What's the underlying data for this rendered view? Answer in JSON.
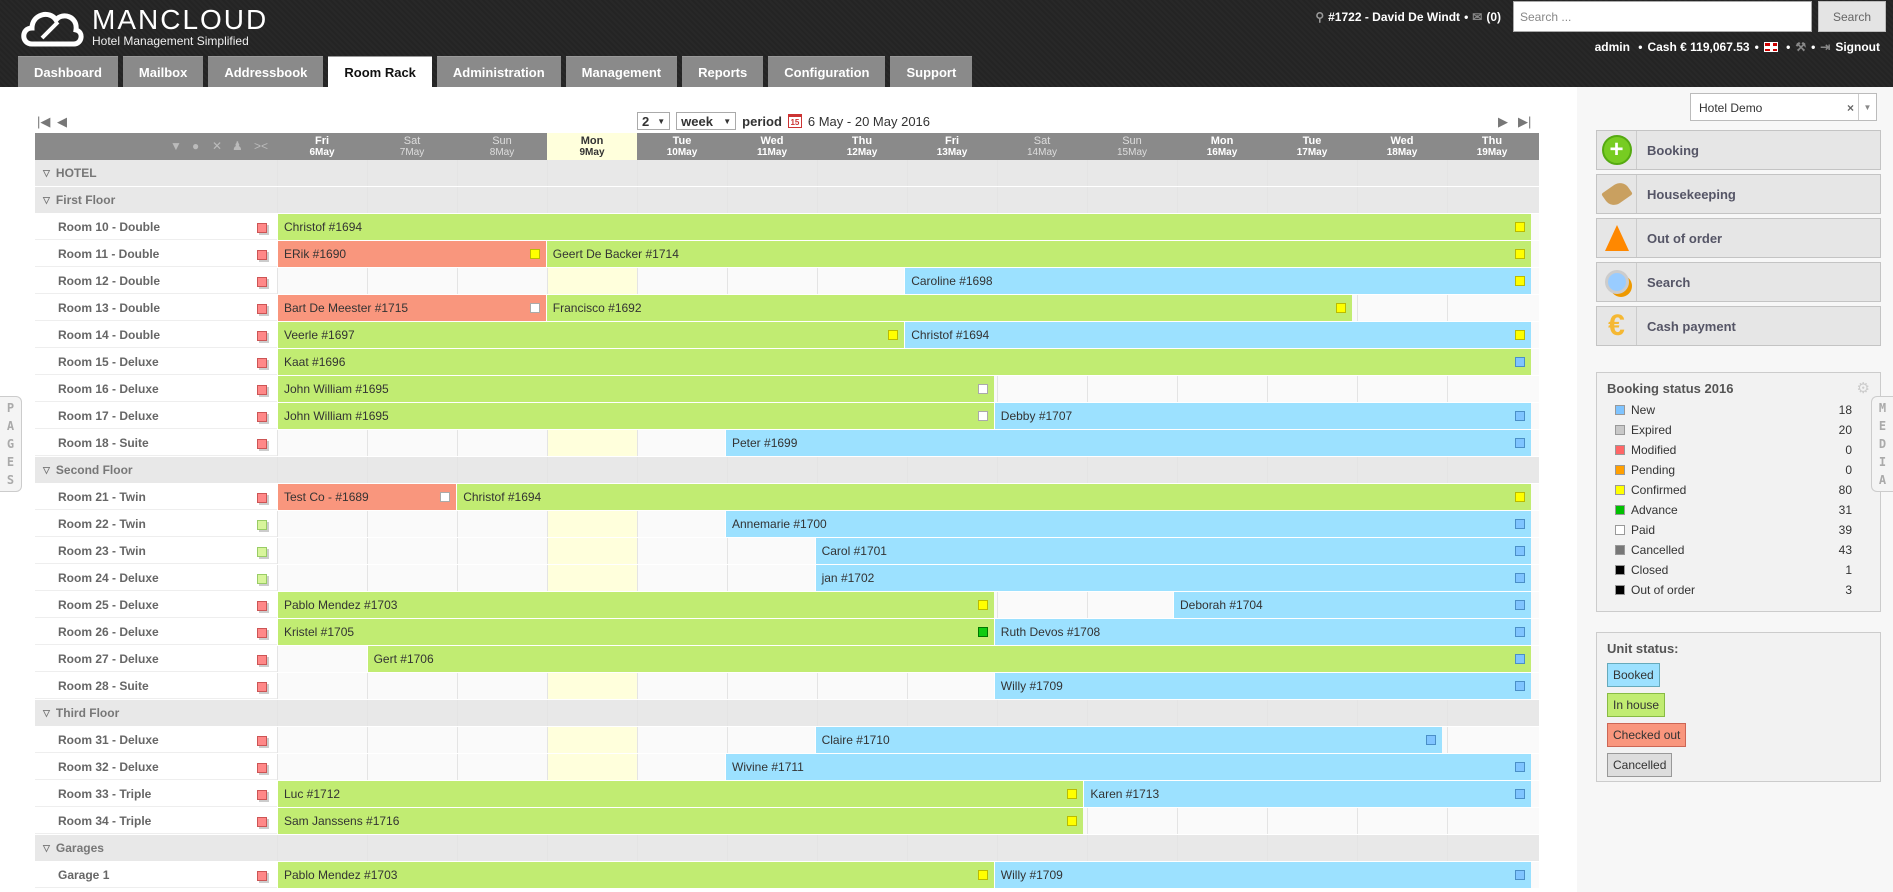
{
  "header": {
    "brand": "MANCLOUD",
    "tagline": "Hotel Management Simplified",
    "current_booking": "#1722 - David De Windt",
    "mail_count": "(0)",
    "search_placeholder": "Search ...",
    "search_button": "Search",
    "user": "admin",
    "cash": "Cash € 119,067.53",
    "signout": "Signout"
  },
  "tabs": [
    {
      "label": "Dashboard",
      "active": false
    },
    {
      "label": "Mailbox",
      "active": false
    },
    {
      "label": "Addressbook",
      "active": false
    },
    {
      "label": "Room Rack",
      "active": true
    },
    {
      "label": "Administration",
      "active": false
    },
    {
      "label": "Management",
      "active": false
    },
    {
      "label": "Reports",
      "active": false
    },
    {
      "label": "Configuration",
      "active": false
    },
    {
      "label": "Support",
      "active": false
    }
  ],
  "period": {
    "count": "2",
    "unit": "week",
    "label": "period",
    "range": "6 May - 20 May 2016"
  },
  "days": [
    {
      "dow": "Fri",
      "date": "6May",
      "weekend": false,
      "today": false
    },
    {
      "dow": "Sat",
      "date": "7May",
      "weekend": true,
      "today": false
    },
    {
      "dow": "Sun",
      "date": "8May",
      "weekend": true,
      "today": false
    },
    {
      "dow": "Mon",
      "date": "9May",
      "weekend": false,
      "today": true
    },
    {
      "dow": "Tue",
      "date": "10May",
      "weekend": false,
      "today": false
    },
    {
      "dow": "Wed",
      "date": "11May",
      "weekend": false,
      "today": false
    },
    {
      "dow": "Thu",
      "date": "12May",
      "weekend": false,
      "today": false
    },
    {
      "dow": "Fri",
      "date": "13May",
      "weekend": false,
      "today": false
    },
    {
      "dow": "Sat",
      "date": "14May",
      "weekend": true,
      "today": false
    },
    {
      "dow": "Sun",
      "date": "15May",
      "weekend": true,
      "today": false
    },
    {
      "dow": "Mon",
      "date": "16May",
      "weekend": false,
      "today": false
    },
    {
      "dow": "Tue",
      "date": "17May",
      "weekend": false,
      "today": false
    },
    {
      "dow": "Wed",
      "date": "18May",
      "weekend": false,
      "today": false
    },
    {
      "dow": "Thu",
      "date": "19May",
      "weekend": false,
      "today": false
    }
  ],
  "rows": [
    {
      "type": "group",
      "label": "HOTEL"
    },
    {
      "type": "group",
      "label": "First Floor"
    },
    {
      "type": "unit",
      "label": "Room 10 - Double",
      "unit_status": "red",
      "bookings": [
        {
          "name": "Christof #1694",
          "start": 0,
          "span": 14,
          "kind": "ih",
          "status": "yellow"
        }
      ]
    },
    {
      "type": "unit",
      "label": "Room 11 - Double",
      "unit_status": "red",
      "bookings": [
        {
          "name": "ERik #1690",
          "start": 0,
          "span": 3,
          "kind": "co",
          "status": "yellow"
        },
        {
          "name": "Geert De Backer #1714",
          "start": 3,
          "span": 11,
          "kind": "ih",
          "status": "yellow"
        }
      ]
    },
    {
      "type": "unit",
      "label": "Room 12 - Double",
      "unit_status": "red",
      "bookings": [
        {
          "name": "Caroline #1698",
          "start": 7,
          "span": 7,
          "kind": "bo",
          "status": "yellow"
        }
      ]
    },
    {
      "type": "unit",
      "label": "Room 13 - Double",
      "unit_status": "red",
      "bookings": [
        {
          "name": "Bart De Meester #1715",
          "start": 0,
          "span": 3,
          "kind": "co",
          "status": "white"
        },
        {
          "name": "Francisco #1692",
          "start": 3,
          "span": 9,
          "kind": "ih",
          "status": "yellow"
        }
      ]
    },
    {
      "type": "unit",
      "label": "Room 14 - Double",
      "unit_status": "red",
      "bookings": [
        {
          "name": "Veerle #1697",
          "start": 0,
          "span": 7,
          "kind": "ih",
          "status": "yellow"
        },
        {
          "name": "Christof #1694",
          "start": 7,
          "span": 7,
          "kind": "bo",
          "status": "yellow"
        }
      ]
    },
    {
      "type": "unit",
      "label": "Room 15 - Deluxe",
      "unit_status": "red",
      "bookings": [
        {
          "name": "Kaat #1696",
          "start": 0,
          "span": 14,
          "kind": "ih",
          "status": "blue"
        }
      ]
    },
    {
      "type": "unit",
      "label": "Room 16 - Deluxe",
      "unit_status": "red",
      "bookings": [
        {
          "name": "John William #1695",
          "start": 0,
          "span": 8,
          "kind": "ih",
          "status": "white"
        }
      ]
    },
    {
      "type": "unit",
      "label": "Room 17 - Deluxe",
      "unit_status": "red",
      "bookings": [
        {
          "name": "John William #1695",
          "start": 0,
          "span": 8,
          "kind": "ih",
          "status": "white"
        },
        {
          "name": "Debby #1707",
          "start": 8,
          "span": 6,
          "kind": "bo",
          "status": "blue"
        }
      ]
    },
    {
      "type": "unit",
      "label": "Room 18 - Suite",
      "unit_status": "red",
      "bookings": [
        {
          "name": "Peter #1699",
          "start": 5,
          "span": 9,
          "kind": "bo",
          "status": "blue"
        }
      ]
    },
    {
      "type": "group",
      "label": "Second Floor"
    },
    {
      "type": "unit",
      "label": "Room 21 - Twin",
      "unit_status": "red",
      "bookings": [
        {
          "name": "Test Co - #1689",
          "start": 0,
          "span": 2,
          "kind": "co",
          "status": "white"
        },
        {
          "name": "Christof #1694",
          "start": 2,
          "span": 12,
          "kind": "ih",
          "status": "yellow"
        }
      ]
    },
    {
      "type": "unit",
      "label": "Room 22 - Twin",
      "unit_status": "green",
      "bookings": [
        {
          "name": "Annemarie #1700",
          "start": 5,
          "span": 9,
          "kind": "bo",
          "status": "blue"
        }
      ]
    },
    {
      "type": "unit",
      "label": "Room 23 - Twin",
      "unit_status": "green",
      "bookings": [
        {
          "name": "Carol #1701",
          "start": 6,
          "span": 8,
          "kind": "bo",
          "status": "blue"
        }
      ]
    },
    {
      "type": "unit",
      "label": "Room 24 - Deluxe",
      "unit_status": "green",
      "bookings": [
        {
          "name": "jan #1702",
          "start": 6,
          "span": 8,
          "kind": "bo",
          "status": "blue"
        }
      ]
    },
    {
      "type": "unit",
      "label": "Room 25 - Deluxe",
      "unit_status": "red",
      "bookings": [
        {
          "name": "Pablo Mendez #1703",
          "start": 0,
          "span": 8,
          "kind": "ih",
          "status": "yellow"
        },
        {
          "name": "Deborah #1704",
          "start": 10,
          "span": 4,
          "kind": "bo",
          "status": "blue"
        }
      ]
    },
    {
      "type": "unit",
      "label": "Room 26 - Deluxe",
      "unit_status": "red",
      "bookings": [
        {
          "name": "Kristel #1705",
          "start": 0,
          "span": 8,
          "kind": "ih",
          "status": "green"
        },
        {
          "name": "Ruth Devos #1708",
          "start": 8,
          "span": 6,
          "kind": "bo",
          "status": "blue"
        }
      ]
    },
    {
      "type": "unit",
      "label": "Room 27 - Deluxe",
      "unit_status": "red",
      "bookings": [
        {
          "name": "Gert #1706",
          "start": 1,
          "span": 13,
          "kind": "ih",
          "status": "blue"
        }
      ]
    },
    {
      "type": "unit",
      "label": "Room 28 - Suite",
      "unit_status": "red",
      "bookings": [
        {
          "name": "Willy #1709",
          "start": 8,
          "span": 6,
          "kind": "bo",
          "status": "blue"
        }
      ]
    },
    {
      "type": "group",
      "label": "Third Floor"
    },
    {
      "type": "unit",
      "label": "Room 31 - Deluxe",
      "unit_status": "red",
      "bookings": [
        {
          "name": "Claire #1710",
          "start": 6,
          "span": 7,
          "kind": "bo",
          "status": "blue"
        }
      ]
    },
    {
      "type": "unit",
      "label": "Room 32 - Deluxe",
      "unit_status": "red",
      "bookings": [
        {
          "name": "Wivine #1711",
          "start": 5,
          "span": 9,
          "kind": "bo",
          "status": "blue"
        }
      ]
    },
    {
      "type": "unit",
      "label": "Room 33 - Triple",
      "unit_status": "red",
      "bookings": [
        {
          "name": "Luc #1712",
          "start": 0,
          "span": 9,
          "kind": "ih",
          "status": "yellow"
        },
        {
          "name": "Karen #1713",
          "start": 9,
          "span": 5,
          "kind": "bo",
          "status": "blue"
        }
      ]
    },
    {
      "type": "unit",
      "label": "Room 34 - Triple",
      "unit_status": "red",
      "bookings": [
        {
          "name": "Sam Janssens #1716",
          "start": 0,
          "span": 9,
          "kind": "ih",
          "status": "yellow"
        }
      ]
    },
    {
      "type": "group",
      "label": "Garages"
    },
    {
      "type": "unit",
      "label": "Garage 1",
      "unit_status": "red",
      "bookings": [
        {
          "name": "Pablo Mendez #1703",
          "start": 0,
          "span": 8,
          "kind": "ih",
          "status": "yellow"
        },
        {
          "name": "Willy #1709",
          "start": 8,
          "span": 6,
          "kind": "bo",
          "status": "blue"
        }
      ]
    }
  ],
  "sidebar": {
    "hotel_select": "Hotel Demo",
    "actions": [
      {
        "label": "Booking",
        "icon": "plus-icon"
      },
      {
        "label": "Housekeeping",
        "icon": "broom-icon"
      },
      {
        "label": "Out of order",
        "icon": "cone-icon"
      },
      {
        "label": "Search",
        "icon": "magnifier-icon"
      },
      {
        "label": "Cash payment",
        "icon": "euro-icon"
      }
    ],
    "booking_status": {
      "title": "Booking status 2016",
      "items": [
        {
          "label": "New",
          "count": "18",
          "color": "#7fc4ff"
        },
        {
          "label": "Expired",
          "count": "20",
          "color": "#c8c8c8"
        },
        {
          "label": "Modified",
          "count": "0",
          "color": "#ff6666"
        },
        {
          "label": "Pending",
          "count": "0",
          "color": "#ffa000"
        },
        {
          "label": "Confirmed",
          "count": "80",
          "color": "#ffff00"
        },
        {
          "label": "Advance",
          "count": "31",
          "color": "#00c000"
        },
        {
          "label": "Paid",
          "count": "39",
          "color": "#ffffff"
        },
        {
          "label": "Cancelled",
          "count": "43",
          "color": "#777777"
        },
        {
          "label": "Closed",
          "count": "1",
          "color": "#000000"
        },
        {
          "label": "Out of order",
          "count": "3",
          "color": "#000000"
        }
      ]
    },
    "unit_status": {
      "title": "Unit status:",
      "items": [
        {
          "label": "Booked",
          "bg": "#9ce1ff",
          "border": "#6ab"
        },
        {
          "label": "In house",
          "bg": "#c1ec72",
          "border": "#8b4"
        },
        {
          "label": "Checked out",
          "bg": "#f9967d",
          "border": "#c65"
        },
        {
          "label": "Cancelled",
          "bg": "#dddddd",
          "border": "#999"
        }
      ]
    }
  },
  "side_tabs": {
    "left": "PAGES",
    "right": "MEDIA"
  },
  "colors": {
    "in_house": "#c1ec72",
    "booked": "#9ce1ff",
    "checked_out": "#f9967d",
    "today": "#ffffdc"
  }
}
